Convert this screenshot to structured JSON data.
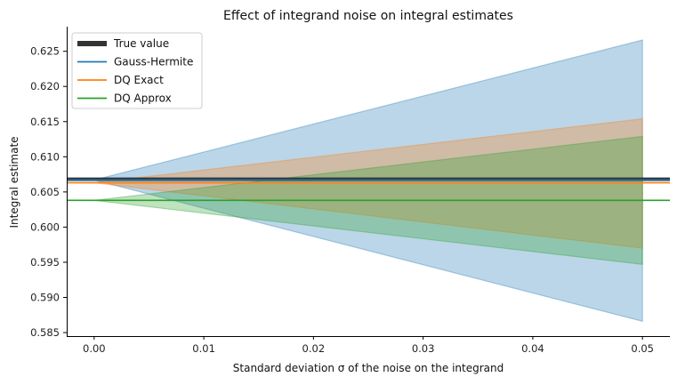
{
  "chart_data": {
    "type": "line",
    "title": "Effect of integrand noise on integral estimates",
    "xlabel": "Standard deviation σ of the noise on the integrand",
    "ylabel": "Integral estimate",
    "xlim": [
      -0.0025,
      0.0525
    ],
    "ylim": [
      0.5845,
      0.6285
    ],
    "xticks": [
      0.0,
      0.01,
      0.02,
      0.03,
      0.04,
      0.05
    ],
    "xtick_labels": [
      "0.00",
      "0.01",
      "0.02",
      "0.03",
      "0.04",
      "0.05"
    ],
    "yticks": [
      0.585,
      0.59,
      0.595,
      0.6,
      0.605,
      0.61,
      0.615,
      0.62,
      0.625
    ],
    "ytick_labels": [
      "0.585",
      "0.590",
      "0.595",
      "0.600",
      "0.605",
      "0.610",
      "0.615",
      "0.620",
      "0.625"
    ],
    "grid": false,
    "legend_position": "top-left",
    "hlines": [
      {
        "name": "True value",
        "y": 0.6068,
        "color": "#333333"
      },
      {
        "name": "Gauss-Hermite",
        "y": 0.6067,
        "color": "#1f77b4"
      },
      {
        "name": "DQ Exact",
        "y": 0.6063,
        "color": "#ff7f0e"
      },
      {
        "name": "DQ Approx",
        "y": 0.6038,
        "color": "#2ca02c"
      }
    ],
    "bands": [
      {
        "name": "Gauss-Hermite",
        "color": "#1f77b4",
        "x": [
          0.0,
          0.05
        ],
        "lower": [
          0.6067,
          0.5866
        ],
        "upper": [
          0.6067,
          0.6266
        ]
      },
      {
        "name": "DQ Exact",
        "color": "#ff7f0e",
        "x": [
          0.0,
          0.05
        ],
        "lower": [
          0.6063,
          0.597
        ],
        "upper": [
          0.6063,
          0.6154
        ]
      },
      {
        "name": "DQ Approx",
        "color": "#2ca02c",
        "x": [
          0.0,
          0.05
        ],
        "lower": [
          0.6038,
          0.5947
        ],
        "upper": [
          0.6038,
          0.6129
        ]
      }
    ],
    "legend": [
      {
        "label": "True value",
        "color": "#333333",
        "style": "thick"
      },
      {
        "label": "Gauss-Hermite",
        "color": "#1f77b4",
        "style": "line"
      },
      {
        "label": "DQ Exact",
        "color": "#ff7f0e",
        "style": "line"
      },
      {
        "label": "DQ Approx",
        "color": "#2ca02c",
        "style": "line"
      }
    ]
  }
}
